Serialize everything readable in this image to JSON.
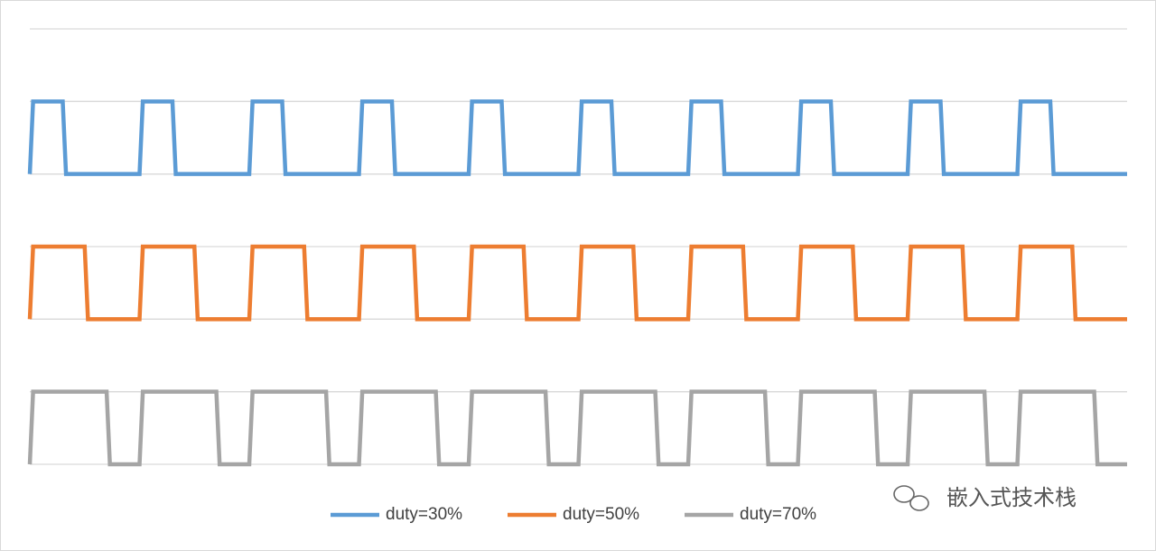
{
  "chart_data": {
    "type": "line",
    "x": [
      0,
      0.3,
      3,
      3.3,
      5,
      5.3,
      7,
      7.3,
      10,
      10.3,
      13,
      13.3,
      15,
      15.3,
      17,
      17.3,
      20,
      20.3,
      23,
      23.3,
      25,
      25.3,
      27,
      27.3,
      30,
      30.3,
      33,
      33.3,
      35,
      35.3,
      37,
      37.3,
      40,
      40.3,
      43,
      43.3,
      45,
      45.3,
      47,
      47.3,
      50,
      50.3,
      53,
      53.3,
      55,
      55.3,
      57,
      57.3,
      60,
      60.3,
      63,
      63.3,
      65,
      65.3,
      67,
      67.3,
      70,
      70.3,
      73,
      73.3,
      75,
      75.3,
      77,
      77.3,
      80,
      80.3,
      83,
      83.3,
      85,
      85.3,
      87,
      87.3,
      90,
      90.3,
      93,
      93.3,
      95,
      95.3,
      97,
      97.3,
      100
    ],
    "series": [
      {
        "name": "duty=30%",
        "color": "#5b9bd5",
        "values": [
          4,
          5,
          5,
          4,
          4,
          4,
          4,
          4,
          4,
          5,
          5,
          4,
          4,
          4,
          4,
          4,
          4,
          5,
          5,
          4,
          4,
          4,
          4,
          4,
          4,
          5,
          5,
          4,
          4,
          4,
          4,
          4,
          4,
          5,
          5,
          4,
          4,
          4,
          4,
          4,
          4,
          5,
          5,
          4,
          4,
          4,
          4,
          4,
          4,
          5,
          5,
          4,
          4,
          4,
          4,
          4,
          4,
          5,
          5,
          4,
          4,
          4,
          4,
          4,
          4,
          5,
          5,
          4,
          4,
          4,
          4,
          4,
          4,
          5,
          5,
          4,
          4,
          4,
          4,
          4,
          4
        ]
      },
      {
        "name": "duty=50%",
        "color": "#ed7d31",
        "values": [
          2,
          3,
          3,
          3,
          3,
          2,
          2,
          2,
          2,
          3,
          3,
          3,
          3,
          2,
          2,
          2,
          2,
          3,
          3,
          3,
          3,
          2,
          2,
          2,
          2,
          3,
          3,
          3,
          3,
          2,
          2,
          2,
          2,
          3,
          3,
          3,
          3,
          2,
          2,
          2,
          2,
          3,
          3,
          3,
          3,
          2,
          2,
          2,
          2,
          3,
          3,
          3,
          3,
          2,
          2,
          2,
          2,
          3,
          3,
          3,
          3,
          2,
          2,
          2,
          2,
          3,
          3,
          3,
          3,
          2,
          2,
          2,
          2,
          3,
          3,
          3,
          3,
          2,
          2,
          2,
          2
        ]
      },
      {
        "name": "duty=70%",
        "color": "#a5a5a5",
        "values": [
          0,
          1,
          1,
          1,
          1,
          1,
          1,
          0,
          0,
          1,
          1,
          1,
          1,
          1,
          1,
          0,
          0,
          1,
          1,
          1,
          1,
          1,
          1,
          0,
          0,
          1,
          1,
          1,
          1,
          1,
          1,
          0,
          0,
          1,
          1,
          1,
          1,
          1,
          1,
          0,
          0,
          1,
          1,
          1,
          1,
          1,
          1,
          0,
          0,
          1,
          1,
          1,
          1,
          1,
          1,
          0,
          0,
          1,
          1,
          1,
          1,
          1,
          1,
          0,
          0,
          1,
          1,
          1,
          1,
          1,
          1,
          0,
          0,
          1,
          1,
          1,
          1,
          1,
          1,
          0,
          0
        ]
      }
    ],
    "xlim": [
      0,
      100
    ],
    "ylim": [
      0,
      6
    ],
    "yticks": [
      0,
      1,
      2,
      3,
      4,
      5,
      6
    ],
    "grid": true,
    "legend": "bottom",
    "watermark": "嵌入式技术栈"
  }
}
